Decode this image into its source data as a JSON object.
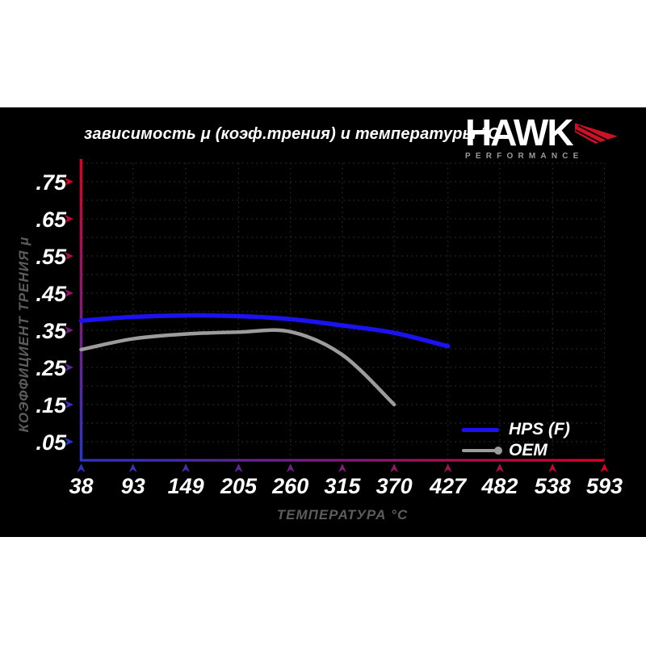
{
  "page": {
    "background": "#ffffff",
    "panel_background": "#000000"
  },
  "header": {
    "logo": {
      "brand": "HAWK",
      "subtitle": "PERFORMANCE",
      "wing_color": "#cf1126"
    }
  },
  "chart_data": {
    "type": "line",
    "title": "зависимость μ (коэф.трения) и температуры °C",
    "xlabel": "ТЕМПЕРАТУРА °C",
    "ylabel": "КОЭФФИЦИЕНТ ТРЕНИЯ μ",
    "xlim": [
      38,
      593
    ],
    "ylim": [
      0,
      0.8
    ],
    "x_ticks": [
      38,
      93,
      149,
      205,
      260,
      315,
      370,
      427,
      482,
      538,
      593
    ],
    "y_ticks": [
      0.05,
      0.15,
      0.25,
      0.35,
      0.45,
      0.55,
      0.65,
      0.75
    ],
    "y_tick_labels": [
      ".05",
      ".15",
      ".25",
      ".35",
      ".45",
      ".55",
      ".65",
      ".75"
    ],
    "grid": true,
    "grid_step": 0.05,
    "grid_color": "#2d2d2d",
    "legend_position": "lower right",
    "axis_gradient": {
      "hot": "#dd0022",
      "cold": "#2a35cc"
    },
    "series": [
      {
        "name": "HPS (F)",
        "color": "#1a13f0",
        "x": [
          38,
          93,
          149,
          205,
          260,
          315,
          370,
          427
        ],
        "y": [
          0.376,
          0.386,
          0.39,
          0.388,
          0.38,
          0.363,
          0.343,
          0.307
        ]
      },
      {
        "name": "OEM",
        "color": "#9c9c9c",
        "x": [
          38,
          93,
          149,
          205,
          260,
          315,
          370
        ],
        "y": [
          0.298,
          0.327,
          0.34,
          0.345,
          0.346,
          0.284,
          0.15
        ]
      }
    ]
  }
}
